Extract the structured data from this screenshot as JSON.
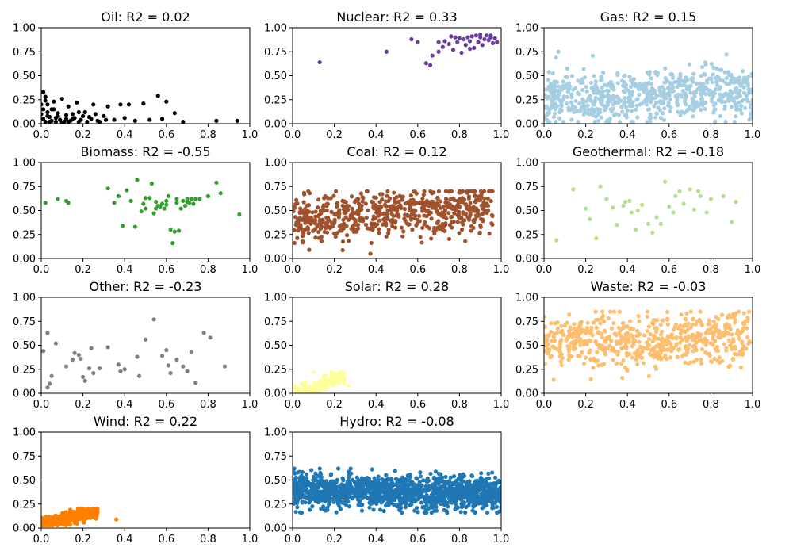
{
  "figure": {
    "background": "#ffffff"
  },
  "chart_data": [
    {
      "type": "scatter",
      "title": "Oil: R2 = 0.02",
      "color": "#000000",
      "xlim": [
        0,
        1
      ],
      "ylim": [
        0,
        1
      ],
      "xticks": [
        "0.0",
        "0.2",
        "0.4",
        "0.6",
        "0.8",
        "1.0"
      ],
      "yticks": [
        "0.00",
        "0.25",
        "0.50",
        "0.75",
        "1.00"
      ],
      "grid": false,
      "points": [
        [
          0.01,
          0.33
        ],
        [
          0.02,
          0.28
        ],
        [
          0.03,
          0.2
        ],
        [
          0.05,
          0.15
        ],
        [
          0.06,
          0.23
        ],
        [
          0.08,
          0.08
        ],
        [
          0.1,
          0.26
        ],
        [
          0.12,
          0.05
        ],
        [
          0.13,
          0.18
        ],
        [
          0.15,
          0.1
        ],
        [
          0.17,
          0.22
        ],
        [
          0.19,
          0.04
        ],
        [
          0.21,
          0.12
        ],
        [
          0.23,
          0.07
        ],
        [
          0.25,
          0.2
        ],
        [
          0.27,
          0.03
        ],
        [
          0.3,
          0.08
        ],
        [
          0.32,
          0.18
        ],
        [
          0.35,
          0.04
        ],
        [
          0.38,
          0.2
        ],
        [
          0.4,
          0.06
        ],
        [
          0.42,
          0.2
        ],
        [
          0.45,
          0.03
        ],
        [
          0.49,
          0.21
        ],
        [
          0.52,
          0.04
        ],
        [
          0.56,
          0.29
        ],
        [
          0.58,
          0.05
        ],
        [
          0.6,
          0.23
        ],
        [
          0.64,
          0.11
        ],
        [
          0.68,
          0.02
        ],
        [
          0.84,
          0.03
        ],
        [
          0.94,
          0.03
        ],
        [
          0.0,
          0.1
        ],
        [
          0.01,
          0.05
        ],
        [
          0.02,
          0.02
        ],
        [
          0.03,
          0.12
        ],
        [
          0.04,
          0.07
        ],
        [
          0.05,
          0.03
        ],
        [
          0.06,
          0.15
        ],
        [
          0.07,
          0.02
        ],
        [
          0.08,
          0.11
        ],
        [
          0.09,
          0.04
        ],
        [
          0.11,
          0.02
        ],
        [
          0.12,
          0.09
        ],
        [
          0.14,
          0.03
        ],
        [
          0.16,
          0.06
        ],
        [
          0.18,
          0.02
        ],
        [
          0.2,
          0.08
        ],
        [
          0.22,
          0.02
        ],
        [
          0.24,
          0.05
        ],
        [
          0.26,
          0.1
        ],
        [
          0.28,
          0.02
        ],
        [
          0.31,
          0.04
        ],
        [
          0.0,
          0.2
        ],
        [
          0.01,
          0.15
        ],
        [
          0.03,
          0.08
        ],
        [
          0.04,
          0.02
        ],
        [
          0.07,
          0.06
        ],
        [
          0.1,
          0.01
        ],
        [
          0.13,
          0.02
        ],
        [
          0.15,
          0.05
        ],
        [
          0.18,
          0.12
        ],
        [
          0.02,
          0.24
        ]
      ]
    },
    {
      "type": "scatter",
      "title": "Nuclear: R2 = 0.33",
      "color": "#6a3d9a",
      "xlim": [
        0,
        1
      ],
      "ylim": [
        0,
        1
      ],
      "xticks": [
        "0.0",
        "0.2",
        "0.4",
        "0.6",
        "0.8",
        "1.0"
      ],
      "yticks": [
        "0.00",
        "0.25",
        "0.50",
        "0.75",
        "1.00"
      ],
      "grid": false,
      "points": [
        [
          0.13,
          0.64
        ],
        [
          0.45,
          0.75
        ],
        [
          0.57,
          0.88
        ],
        [
          0.64,
          0.63
        ],
        [
          0.66,
          0.61
        ],
        [
          0.67,
          0.71
        ],
        [
          0.7,
          0.75
        ],
        [
          0.72,
          0.8
        ],
        [
          0.73,
          0.86
        ],
        [
          0.75,
          0.83
        ],
        [
          0.76,
          0.91
        ],
        [
          0.77,
          0.77
        ],
        [
          0.79,
          0.85
        ],
        [
          0.8,
          0.89
        ],
        [
          0.81,
          0.74
        ],
        [
          0.82,
          0.88
        ],
        [
          0.83,
          0.82
        ],
        [
          0.84,
          0.9
        ],
        [
          0.85,
          0.86
        ],
        [
          0.86,
          0.91
        ],
        [
          0.87,
          0.79
        ],
        [
          0.88,
          0.92
        ],
        [
          0.89,
          0.85
        ],
        [
          0.9,
          0.9
        ],
        [
          0.91,
          0.82
        ],
        [
          0.92,
          0.88
        ],
        [
          0.93,
          0.92
        ],
        [
          0.94,
          0.87
        ],
        [
          0.95,
          0.9
        ],
        [
          0.96,
          0.84
        ],
        [
          0.97,
          0.89
        ],
        [
          0.98,
          0.85
        ],
        [
          0.6,
          0.85
        ],
        [
          0.7,
          0.85
        ],
        [
          0.78,
          0.9
        ],
        [
          0.85,
          0.78
        ],
        [
          0.9,
          0.93
        ],
        [
          0.95,
          0.92
        ]
      ]
    },
    {
      "type": "scatter",
      "title": "Gas: R2 = 0.15",
      "color": "#a6cee3",
      "xlim": [
        0,
        1
      ],
      "ylim": [
        0,
        1
      ],
      "xticks": [
        "0.0",
        "0.2",
        "0.4",
        "0.6",
        "0.8",
        "1.0"
      ],
      "yticks": [
        "0.00",
        "0.25",
        "0.50",
        "0.75",
        "1.00"
      ],
      "grid": false,
      "generator": {
        "n": 700,
        "x_range": [
          0,
          1
        ],
        "y_range": [
          0.02,
          0.75
        ],
        "trend": 0.08,
        "center_y": 0.3,
        "seed": 11
      },
      "points": []
    },
    {
      "type": "scatter",
      "title": "Biomass: R2 = -0.55",
      "color": "#33a02c",
      "xlim": [
        0,
        1
      ],
      "ylim": [
        0,
        1
      ],
      "xticks": [
        "0.0",
        "0.2",
        "0.4",
        "0.6",
        "0.8",
        "1.0"
      ],
      "yticks": [
        "0.00",
        "0.25",
        "0.50",
        "0.75",
        "1.00"
      ],
      "grid": false,
      "points": [
        [
          0.02,
          0.58
        ],
        [
          0.08,
          0.62
        ],
        [
          0.12,
          0.6
        ],
        [
          0.13,
          0.58
        ],
        [
          0.32,
          0.73
        ],
        [
          0.35,
          0.58
        ],
        [
          0.37,
          0.65
        ],
        [
          0.39,
          0.34
        ],
        [
          0.41,
          0.71
        ],
        [
          0.43,
          0.6
        ],
        [
          0.45,
          0.33
        ],
        [
          0.46,
          0.82
        ],
        [
          0.48,
          0.49
        ],
        [
          0.49,
          0.57
        ],
        [
          0.5,
          0.52
        ],
        [
          0.52,
          0.63
        ],
        [
          0.53,
          0.78
        ],
        [
          0.54,
          0.47
        ],
        [
          0.55,
          0.59
        ],
        [
          0.56,
          0.55
        ],
        [
          0.57,
          0.54
        ],
        [
          0.58,
          0.57
        ],
        [
          0.59,
          0.52
        ],
        [
          0.6,
          0.56
        ],
        [
          0.61,
          0.65
        ],
        [
          0.62,
          0.3
        ],
        [
          0.63,
          0.16
        ],
        [
          0.64,
          0.28
        ],
        [
          0.65,
          0.58
        ],
        [
          0.66,
          0.29
        ],
        [
          0.67,
          0.52
        ],
        [
          0.68,
          0.6
        ],
        [
          0.69,
          0.55
        ],
        [
          0.7,
          0.62
        ],
        [
          0.71,
          0.58
        ],
        [
          0.72,
          0.62
        ],
        [
          0.73,
          0.57
        ],
        [
          0.74,
          0.62
        ],
        [
          0.76,
          0.62
        ],
        [
          0.8,
          0.65
        ],
        [
          0.84,
          0.79
        ],
        [
          0.86,
          0.68
        ],
        [
          0.95,
          0.46
        ],
        [
          0.5,
          0.63
        ],
        [
          0.55,
          0.52
        ],
        [
          0.6,
          0.6
        ],
        [
          0.65,
          0.62
        ],
        [
          0.7,
          0.59
        ]
      ]
    },
    {
      "type": "scatter",
      "title": "Coal: R2 = 0.12",
      "color": "#a0522d",
      "xlim": [
        0,
        1
      ],
      "ylim": [
        0,
        1
      ],
      "xticks": [
        "0.0",
        "0.2",
        "0.4",
        "0.6",
        "0.8",
        "1.0"
      ],
      "yticks": [
        "0.00",
        "0.25",
        "0.50",
        "0.75",
        "1.00"
      ],
      "grid": false,
      "generator": {
        "n": 650,
        "x_range": [
          0,
          0.96
        ],
        "y_range": [
          0.05,
          0.7
        ],
        "trend": 0.12,
        "center_y": 0.48,
        "seed": 23
      },
      "points": []
    },
    {
      "type": "scatter",
      "title": "Geothermal: R2 = -0.18",
      "color": "#b2df8a",
      "xlim": [
        0,
        1
      ],
      "ylim": [
        0,
        1
      ],
      "xticks": [
        "0.0",
        "0.2",
        "0.4",
        "0.6",
        "0.8",
        "1.0"
      ],
      "yticks": [
        "0.00",
        "0.25",
        "0.50",
        "0.75",
        "1.00"
      ],
      "grid": false,
      "points": [
        [
          0.06,
          0.19
        ],
        [
          0.14,
          0.72
        ],
        [
          0.2,
          0.52
        ],
        [
          0.22,
          0.41
        ],
        [
          0.25,
          0.21
        ],
        [
          0.27,
          0.75
        ],
        [
          0.3,
          0.62
        ],
        [
          0.33,
          0.53
        ],
        [
          0.35,
          0.35
        ],
        [
          0.38,
          0.55
        ],
        [
          0.39,
          0.59
        ],
        [
          0.41,
          0.6
        ],
        [
          0.42,
          0.48
        ],
        [
          0.44,
          0.3
        ],
        [
          0.45,
          0.5
        ],
        [
          0.47,
          0.56
        ],
        [
          0.5,
          0.36
        ],
        [
          0.52,
          0.27
        ],
        [
          0.54,
          0.43
        ],
        [
          0.56,
          0.36
        ],
        [
          0.58,
          0.8
        ],
        [
          0.6,
          0.54
        ],
        [
          0.62,
          0.48
        ],
        [
          0.63,
          0.65
        ],
        [
          0.65,
          0.7
        ],
        [
          0.67,
          0.57
        ],
        [
          0.7,
          0.72
        ],
        [
          0.72,
          0.51
        ],
        [
          0.74,
          0.7
        ],
        [
          0.75,
          0.65
        ],
        [
          0.78,
          0.48
        ],
        [
          0.8,
          0.62
        ],
        [
          0.86,
          0.65
        ],
        [
          0.9,
          0.38
        ],
        [
          0.92,
          0.59
        ]
      ]
    },
    {
      "type": "scatter",
      "title": "Other: R2 = -0.23",
      "color": "#808080",
      "xlim": [
        0,
        1
      ],
      "ylim": [
        0,
        1
      ],
      "xticks": [
        "0.0",
        "0.2",
        "0.4",
        "0.6",
        "0.8",
        "1.0"
      ],
      "yticks": [
        "0.00",
        "0.25",
        "0.50",
        "0.75",
        "1.00"
      ],
      "grid": false,
      "points": [
        [
          0.01,
          0.44
        ],
        [
          0.03,
          0.63
        ],
        [
          0.03,
          0.06
        ],
        [
          0.04,
          0.1
        ],
        [
          0.05,
          0.18
        ],
        [
          0.07,
          0.52
        ],
        [
          0.12,
          0.28
        ],
        [
          0.15,
          0.35
        ],
        [
          0.16,
          0.42
        ],
        [
          0.18,
          0.4
        ],
        [
          0.19,
          0.36
        ],
        [
          0.2,
          0.17
        ],
        [
          0.21,
          0.13
        ],
        [
          0.23,
          0.26
        ],
        [
          0.24,
          0.47
        ],
        [
          0.25,
          0.21
        ],
        [
          0.28,
          0.26
        ],
        [
          0.32,
          0.48
        ],
        [
          0.37,
          0.3
        ],
        [
          0.38,
          0.23
        ],
        [
          0.4,
          0.25
        ],
        [
          0.46,
          0.38
        ],
        [
          0.47,
          0.18
        ],
        [
          0.5,
          0.56
        ],
        [
          0.54,
          0.77
        ],
        [
          0.58,
          0.39
        ],
        [
          0.6,
          0.45
        ],
        [
          0.61,
          0.29
        ],
        [
          0.62,
          0.21
        ],
        [
          0.65,
          0.35
        ],
        [
          0.68,
          0.28
        ],
        [
          0.7,
          0.23
        ],
        [
          0.72,
          0.43
        ],
        [
          0.74,
          0.11
        ],
        [
          0.78,
          0.63
        ],
        [
          0.81,
          0.58
        ],
        [
          0.88,
          0.28
        ]
      ]
    },
    {
      "type": "scatter",
      "title": "Solar: R2 = 0.28",
      "color": "#ffff99",
      "xlim": [
        0,
        1
      ],
      "ylim": [
        0,
        1
      ],
      "xticks": [
        "0.0",
        "0.2",
        "0.4",
        "0.6",
        "0.8",
        "1.0"
      ],
      "yticks": [
        "0.00",
        "0.25",
        "0.50",
        "0.75",
        "1.00"
      ],
      "grid": false,
      "generator": {
        "n": 160,
        "x_range": [
          0,
          0.25
        ],
        "y_range": [
          0.0,
          0.22
        ],
        "trend": 0.2,
        "center_y": 0.08,
        "seed": 31
      },
      "points": [
        [
          0.27,
          0.08
        ],
        [
          0.22,
          0.14
        ],
        [
          0.2,
          0.2
        ],
        [
          0.1,
          0.22
        ]
      ]
    },
    {
      "type": "scatter",
      "title": "Waste: R2 = -0.03",
      "color": "#fdbf6f",
      "xlim": [
        0,
        1
      ],
      "ylim": [
        0,
        1
      ],
      "xticks": [
        "0.0",
        "0.2",
        "0.4",
        "0.6",
        "0.8",
        "1.0"
      ],
      "yticks": [
        "0.00",
        "0.25",
        "0.50",
        "0.75",
        "1.00"
      ],
      "grid": false,
      "generator": {
        "n": 600,
        "x_range": [
          0,
          0.99
        ],
        "y_range": [
          0.12,
          0.85
        ],
        "trend": 0.08,
        "center_y": 0.55,
        "seed": 47
      },
      "points": []
    },
    {
      "type": "scatter",
      "title": "Wind: R2 = 0.22",
      "color": "#ff7f00",
      "xlim": [
        0,
        1
      ],
      "ylim": [
        0,
        1
      ],
      "xticks": [
        "0.0",
        "0.2",
        "0.4",
        "0.6",
        "0.8",
        "1.0"
      ],
      "yticks": [
        "0.00",
        "0.25",
        "0.50",
        "0.75",
        "1.00"
      ],
      "grid": false,
      "generator": {
        "n": 450,
        "x_range": [
          0,
          0.27
        ],
        "y_range": [
          0.03,
          0.2
        ],
        "trend": 0.15,
        "center_y": 0.11,
        "seed": 53
      },
      "points": [
        [
          0.36,
          0.09
        ]
      ]
    },
    {
      "type": "scatter",
      "title": "Hydro: R2 = -0.08",
      "color": "#1f77b4",
      "xlim": [
        0,
        1
      ],
      "ylim": [
        0,
        1
      ],
      "xticks": [
        "0.0",
        "0.2",
        "0.4",
        "0.6",
        "0.8",
        "1.0"
      ],
      "yticks": [
        "0.00",
        "0.25",
        "0.50",
        "0.75",
        "1.00"
      ],
      "grid": false,
      "generator": {
        "n": 1400,
        "x_range": [
          0,
          1
        ],
        "y_range": [
          0.16,
          0.62
        ],
        "trend": -0.04,
        "center_y": 0.38,
        "seed": 61
      },
      "points": []
    }
  ]
}
